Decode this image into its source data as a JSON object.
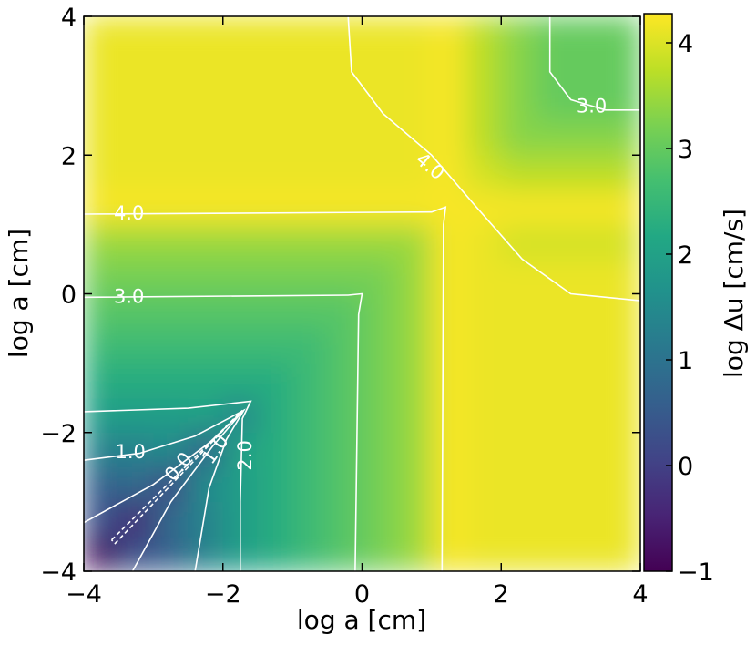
{
  "chart_data": {
    "type": "heatmap",
    "xlabel": "log a [cm]",
    "ylabel": "log a [cm]",
    "colorbar_label": "log Δu [cm/s]",
    "cmap": "viridis",
    "xlim": [
      -4,
      4
    ],
    "ylim": [
      -4,
      4
    ],
    "clim": [
      -1,
      4.25
    ],
    "xticks": [
      {
        "value": -4,
        "label": "−4"
      },
      {
        "value": -2,
        "label": "−2"
      },
      0,
      2,
      4
    ],
    "yticks": [
      {
        "value": -4,
        "label": "−4"
      },
      {
        "value": -2,
        "label": "−2"
      },
      0,
      2,
      4
    ],
    "cticks": [
      {
        "value": -1,
        "label": "−1"
      },
      0,
      1,
      2,
      3,
      4
    ],
    "x": [
      -3.75,
      -3.25,
      -2.75,
      -2.25,
      -1.75,
      -1.25,
      -0.75,
      -0.25,
      0.25,
      0.75,
      1.25,
      1.75,
      2.25,
      2.75,
      3.25,
      3.75
    ],
    "y": [
      -3.75,
      -3.25,
      -2.75,
      -2.25,
      -1.75,
      -1.25,
      -0.75,
      -0.25,
      0.25,
      0.75,
      1.25,
      1.75,
      2.25,
      2.75,
      3.25,
      3.75
    ],
    "z": [
      [
        -0.8,
        0.3,
        0.6,
        1.3,
        1.9,
        2.25,
        2.55,
        2.85,
        3.15,
        3.45,
        4.2,
        4.1,
        4.1,
        4.1,
        4.1,
        4.1
      ],
      [
        0.3,
        -0.4,
        0.8,
        1.3,
        1.9,
        2.25,
        2.55,
        2.85,
        3.15,
        3.45,
        4.2,
        4.1,
        4.1,
        4.1,
        4.1,
        4.1
      ],
      [
        0.6,
        0.8,
        0.1,
        1.5,
        1.9,
        2.25,
        2.55,
        2.85,
        3.15,
        3.45,
        4.2,
        4.1,
        4.1,
        4.1,
        4.1,
        4.1
      ],
      [
        1.3,
        1.3,
        1.5,
        0.6,
        2.0,
        2.25,
        2.55,
        2.85,
        3.15,
        3.45,
        4.2,
        4.1,
        4.1,
        4.1,
        4.1,
        4.1
      ],
      [
        1.9,
        1.9,
        1.9,
        2.0,
        1.4,
        2.25,
        2.55,
        2.85,
        3.15,
        3.45,
        4.2,
        4.1,
        4.1,
        4.1,
        4.1,
        4.1
      ],
      [
        2.25,
        2.25,
        2.25,
        2.25,
        2.25,
        2.25,
        2.55,
        2.85,
        3.15,
        3.45,
        4.2,
        4.1,
        4.1,
        4.1,
        4.1,
        4.1
      ],
      [
        2.55,
        2.55,
        2.55,
        2.55,
        2.55,
        2.55,
        2.55,
        2.85,
        3.15,
        3.45,
        4.2,
        4.1,
        4.1,
        4.1,
        4.1,
        4.1
      ],
      [
        2.85,
        2.85,
        2.85,
        2.85,
        2.85,
        2.85,
        2.85,
        2.85,
        3.15,
        3.45,
        4.2,
        4.1,
        4.1,
        4.1,
        4.1,
        4.1
      ],
      [
        3.15,
        3.15,
        3.15,
        3.15,
        3.15,
        3.15,
        3.15,
        3.15,
        3.15,
        3.45,
        4.2,
        4.1,
        4.1,
        4.1,
        4.1,
        4.1
      ],
      [
        3.45,
        3.45,
        3.45,
        3.45,
        3.45,
        3.45,
        3.45,
        3.45,
        3.45,
        3.45,
        4.2,
        4.1,
        3.9,
        3.9,
        3.9,
        3.9
      ],
      [
        4.2,
        4.2,
        4.2,
        4.2,
        4.2,
        4.2,
        4.2,
        4.2,
        4.2,
        4.2,
        4.2,
        4.2,
        4.2,
        4.2,
        4.2,
        4.2
      ],
      [
        4.1,
        4.1,
        4.1,
        4.1,
        4.1,
        4.1,
        4.1,
        4.1,
        4.1,
        4.1,
        4.2,
        3.9,
        3.7,
        3.7,
        3.7,
        3.7
      ],
      [
        4.1,
        4.1,
        4.1,
        4.1,
        4.1,
        4.1,
        4.1,
        4.1,
        4.1,
        4.1,
        4.2,
        3.7,
        3.3,
        3.3,
        3.3,
        3.3
      ],
      [
        4.1,
        4.1,
        4.1,
        4.1,
        4.1,
        4.1,
        4.1,
        4.1,
        4.1,
        4.1,
        4.2,
        3.7,
        3.3,
        3.0,
        3.0,
        3.0
      ],
      [
        4.1,
        4.1,
        4.1,
        4.1,
        4.1,
        4.1,
        4.1,
        4.1,
        4.1,
        4.1,
        4.2,
        3.7,
        3.3,
        3.0,
        3.0,
        3.0
      ],
      [
        4.1,
        4.1,
        4.1,
        4.1,
        4.1,
        4.1,
        4.1,
        4.1,
        4.1,
        4.1,
        4.2,
        3.7,
        3.3,
        3.0,
        3.0,
        3.0
      ]
    ],
    "contours": [
      {
        "level": {
          "value": 4,
          "label": "4.0"
        },
        "x": [
          -4,
          1.0,
          1.2,
          1.17,
          1.15
        ],
        "y": [
          1.15,
          1.18,
          1.25,
          1.0,
          -4
        ]
      },
      {
        "level": {
          "value": 4,
          "label": "4.0"
        },
        "x": [
          -0.2,
          -0.15,
          0.3,
          1.0,
          1.6,
          2.3,
          3.0,
          4
        ],
        "y": [
          4,
          3.2,
          2.6,
          2.0,
          1.3,
          0.5,
          0.0,
          -0.1
        ]
      },
      {
        "level": {
          "value": 3,
          "label": "3.0"
        },
        "x": [
          -4,
          -0.2,
          0,
          -0.05,
          -0.1
        ],
        "y": [
          -0.05,
          -0.02,
          0,
          -0.3,
          -4
        ]
      },
      {
        "level": {
          "value": 3,
          "label": "3.0"
        },
        "x": [
          2.7,
          2.7,
          3.0,
          3.5,
          4
        ],
        "y": [
          4,
          3.2,
          2.8,
          2.65,
          2.65
        ]
      },
      {
        "level": {
          "value": 2,
          "label": "2.0"
        },
        "x": [
          -4,
          -2.5,
          -1.6,
          -1.72,
          -1.75,
          -1.75
        ],
        "y": [
          -1.7,
          -1.65,
          -1.55,
          -1.8,
          -3,
          -4
        ]
      },
      {
        "level": {
          "value": 1,
          "label": "1.0"
        },
        "x": [
          -4,
          -3.2,
          -2.4,
          -1.7,
          -1.95,
          -2.2,
          -2.4
        ],
        "y": [
          -2.4,
          -2.3,
          -2.05,
          -1.68,
          -2.1,
          -2.8,
          -4
        ]
      },
      {
        "level": {
          "value": 0,
          "label": "0.0"
        },
        "x": [
          -4,
          -3,
          -2.2,
          -1.72,
          -2.15,
          -2.75,
          -3.3
        ],
        "y": [
          -3.3,
          -2.75,
          -2.15,
          -1.7,
          -2.2,
          -3,
          -4
        ]
      },
      {
        "level": -1,
        "x": [
          -3.6,
          -1.72,
          -3.55,
          -3.6
        ],
        "y": [
          -3.55,
          -1.68,
          -3.6,
          -3.55
        ]
      }
    ]
  }
}
